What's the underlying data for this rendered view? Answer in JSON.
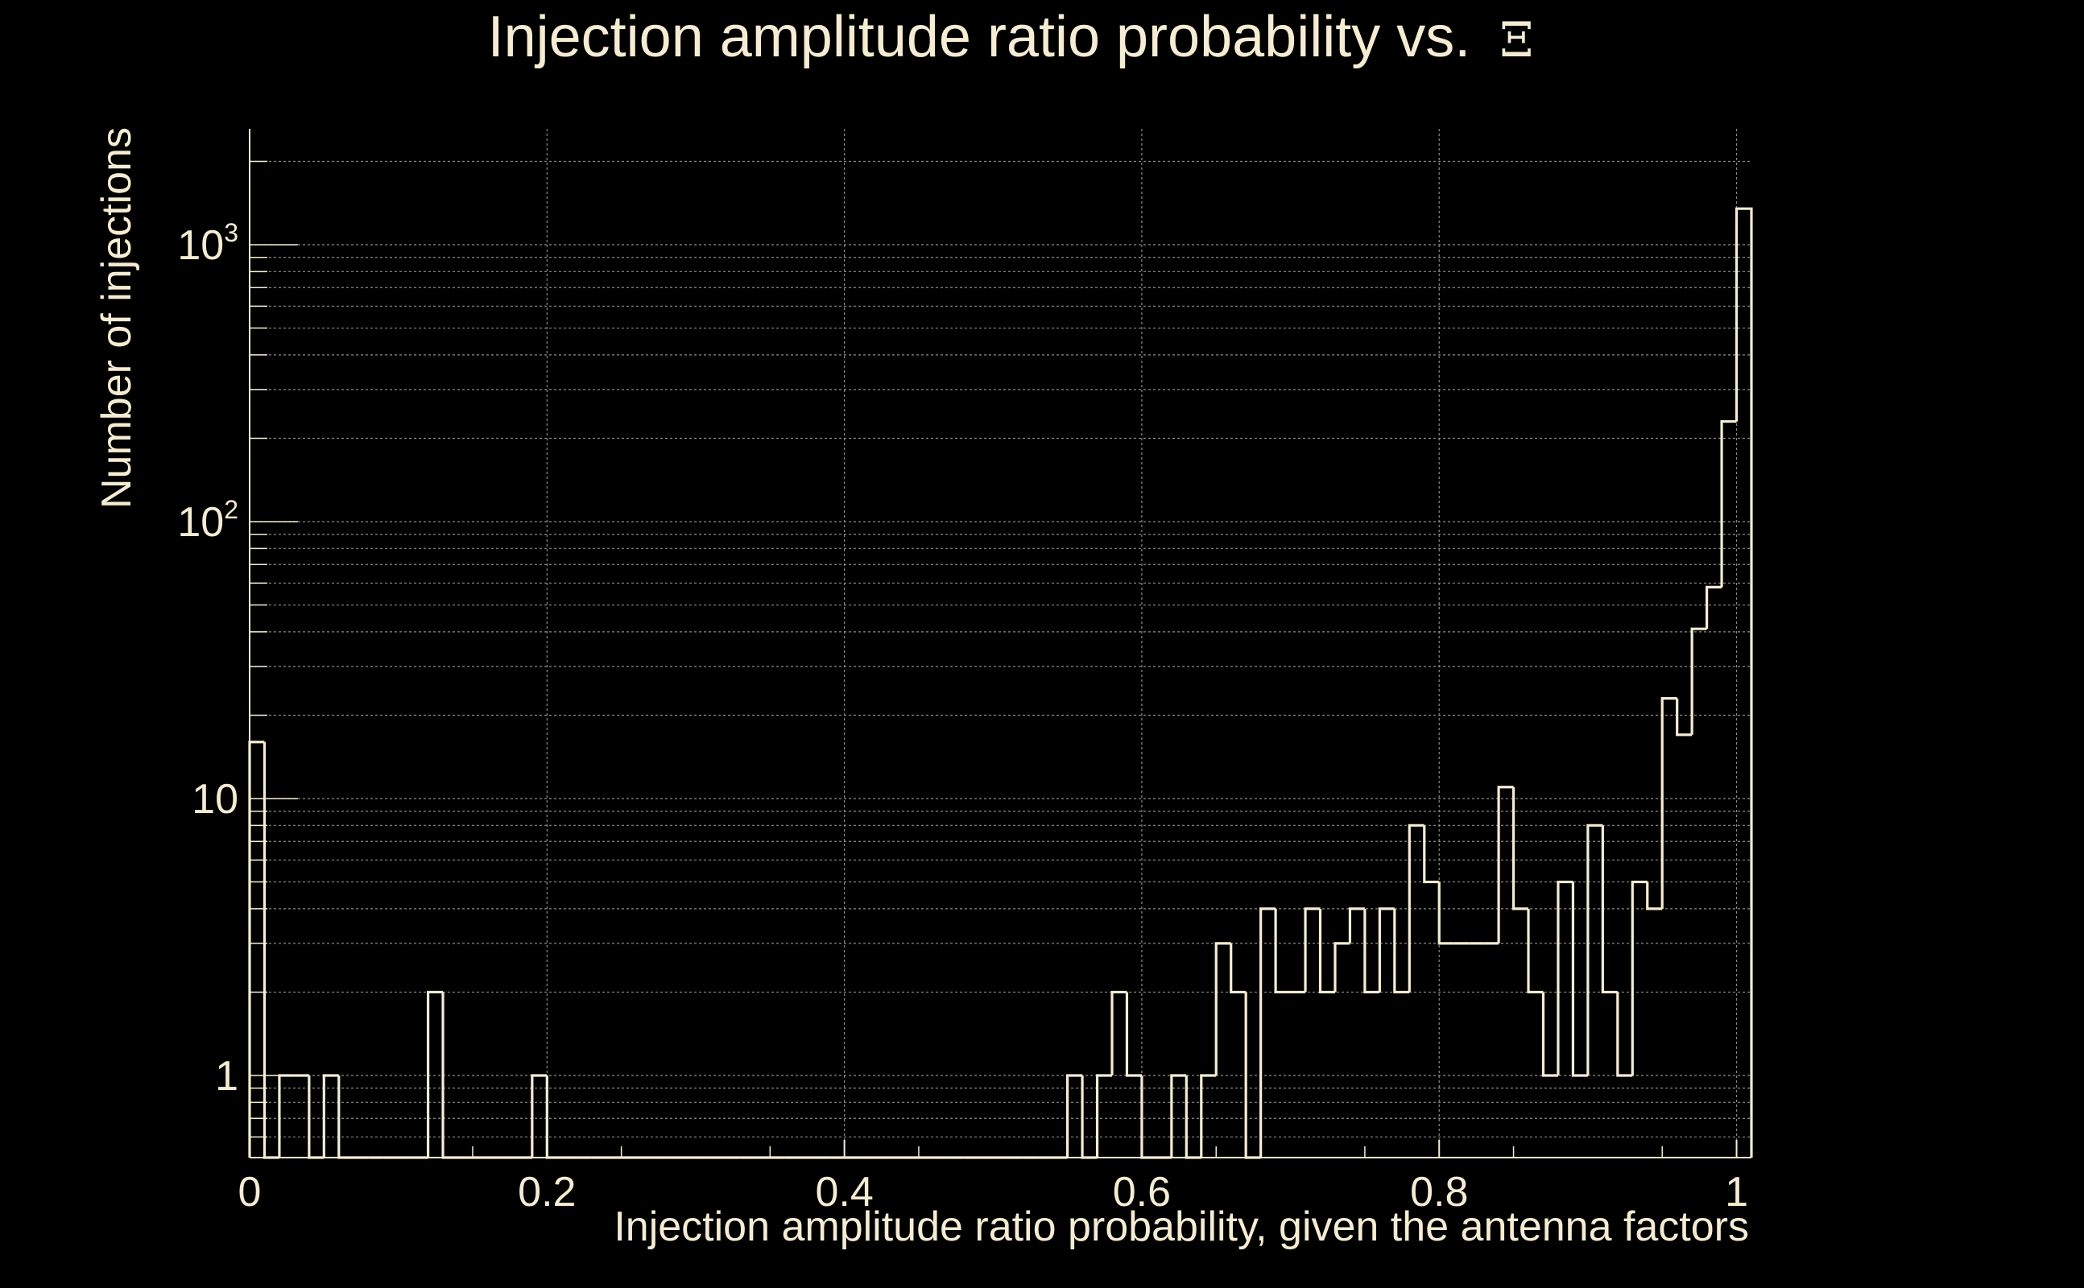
{
  "chart_data": {
    "type": "histogram",
    "title": "Injection amplitude ratio probability vs.",
    "title_symbol": "Ξ",
    "xlabel": "Injection amplitude ratio probability, given the antenna factors",
    "ylabel": "Number of injections",
    "xscale": "linear",
    "yscale": "log",
    "xlim": [
      0,
      1.01
    ],
    "ylim": [
      0.5,
      2500
    ],
    "grid": true,
    "x_ticks": [
      {
        "value": 0,
        "label": "0"
      },
      {
        "value": 0.2,
        "label": "0.2"
      },
      {
        "value": 0.4,
        "label": "0.4"
      },
      {
        "value": 0.6,
        "label": "0.6"
      },
      {
        "value": 0.8,
        "label": "0.8"
      },
      {
        "value": 1,
        "label": "1"
      }
    ],
    "y_ticks": [
      {
        "value": 1,
        "base": "1",
        "exp": ""
      },
      {
        "value": 10,
        "base": "10",
        "exp": ""
      },
      {
        "value": 100,
        "base": "10",
        "exp": "2"
      },
      {
        "value": 1000,
        "base": "10",
        "exp": "3"
      }
    ],
    "bin_width": 0.01,
    "bins": [
      [
        0.0,
        16
      ],
      [
        0.01,
        0
      ],
      [
        0.02,
        1
      ],
      [
        0.03,
        1
      ],
      [
        0.04,
        0
      ],
      [
        0.05,
        1
      ],
      [
        0.06,
        0
      ],
      [
        0.07,
        0
      ],
      [
        0.08,
        0
      ],
      [
        0.09,
        0
      ],
      [
        0.1,
        0
      ],
      [
        0.11,
        0
      ],
      [
        0.12,
        2
      ],
      [
        0.13,
        0
      ],
      [
        0.14,
        0
      ],
      [
        0.15,
        0
      ],
      [
        0.16,
        0
      ],
      [
        0.17,
        0
      ],
      [
        0.18,
        0
      ],
      [
        0.19,
        1
      ],
      [
        0.2,
        0
      ],
      [
        0.21,
        0
      ],
      [
        0.22,
        0
      ],
      [
        0.23,
        0
      ],
      [
        0.24,
        0
      ],
      [
        0.25,
        0
      ],
      [
        0.26,
        0
      ],
      [
        0.27,
        0
      ],
      [
        0.28,
        0
      ],
      [
        0.29,
        0
      ],
      [
        0.3,
        0
      ],
      [
        0.31,
        0
      ],
      [
        0.32,
        0
      ],
      [
        0.33,
        0
      ],
      [
        0.34,
        0
      ],
      [
        0.35,
        0
      ],
      [
        0.36,
        0
      ],
      [
        0.37,
        0
      ],
      [
        0.38,
        0
      ],
      [
        0.39,
        0
      ],
      [
        0.4,
        0
      ],
      [
        0.41,
        0
      ],
      [
        0.42,
        0
      ],
      [
        0.43,
        0
      ],
      [
        0.44,
        0
      ],
      [
        0.45,
        0
      ],
      [
        0.46,
        0
      ],
      [
        0.47,
        0
      ],
      [
        0.48,
        0
      ],
      [
        0.49,
        0
      ],
      [
        0.5,
        0
      ],
      [
        0.51,
        0
      ],
      [
        0.52,
        0
      ],
      [
        0.53,
        0
      ],
      [
        0.54,
        0
      ],
      [
        0.55,
        1
      ],
      [
        0.56,
        0
      ],
      [
        0.57,
        1
      ],
      [
        0.58,
        2
      ],
      [
        0.59,
        1
      ],
      [
        0.6,
        0
      ],
      [
        0.61,
        0
      ],
      [
        0.62,
        1
      ],
      [
        0.63,
        0
      ],
      [
        0.64,
        1
      ],
      [
        0.65,
        3
      ],
      [
        0.66,
        2
      ],
      [
        0.67,
        0
      ],
      [
        0.68,
        4
      ],
      [
        0.69,
        2
      ],
      [
        0.7,
        2
      ],
      [
        0.71,
        4
      ],
      [
        0.72,
        2
      ],
      [
        0.73,
        3
      ],
      [
        0.74,
        4
      ],
      [
        0.75,
        2
      ],
      [
        0.76,
        4
      ],
      [
        0.77,
        2
      ],
      [
        0.78,
        8
      ],
      [
        0.79,
        5
      ],
      [
        0.8,
        3
      ],
      [
        0.81,
        3
      ],
      [
        0.82,
        3
      ],
      [
        0.83,
        3
      ],
      [
        0.84,
        11
      ],
      [
        0.85,
        4
      ],
      [
        0.86,
        2
      ],
      [
        0.87,
        1
      ],
      [
        0.88,
        5
      ],
      [
        0.89,
        1
      ],
      [
        0.9,
        8
      ],
      [
        0.91,
        2
      ],
      [
        0.92,
        1
      ],
      [
        0.93,
        5
      ],
      [
        0.94,
        4
      ],
      [
        0.95,
        23
      ],
      [
        0.96,
        17
      ],
      [
        0.97,
        41
      ],
      [
        0.98,
        58
      ],
      [
        0.99,
        230
      ],
      [
        1.0,
        1350
      ]
    ]
  }
}
